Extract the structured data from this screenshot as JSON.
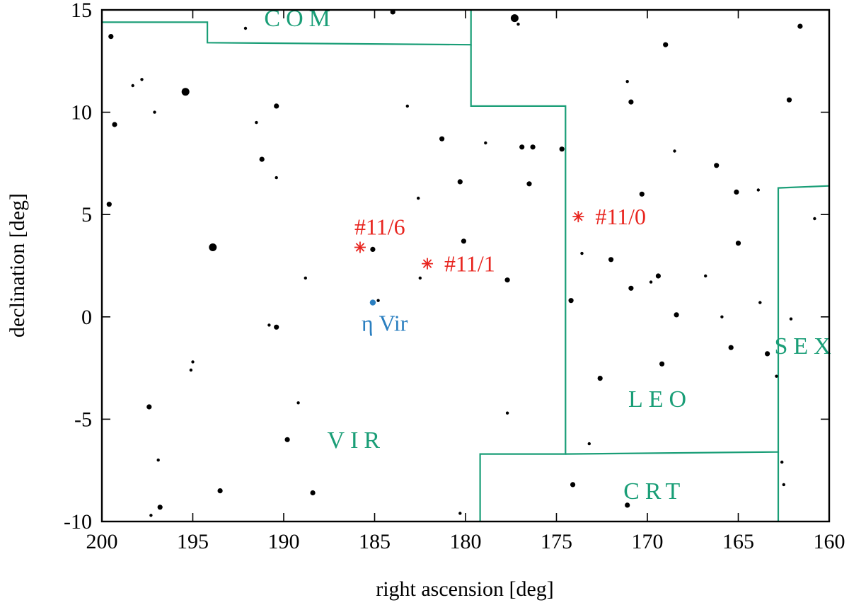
{
  "chart_data": {
    "type": "scatter",
    "title": "",
    "xlabel": "right ascension [deg]",
    "ylabel": "declination [deg]",
    "xlim": [
      200,
      160
    ],
    "ylim": [
      -10,
      15
    ],
    "xticks": [
      "200",
      "195",
      "190",
      "185",
      "180",
      "175",
      "170",
      "165",
      "160"
    ],
    "yticks": [
      "-10",
      "-5",
      "0",
      "5",
      "10",
      "15"
    ],
    "colors": {
      "frame": "#000000",
      "stars": "#000000",
      "boundaries": "#1a9e77",
      "targets": "#e8251f",
      "reference": "#2b7fc0"
    },
    "constellation_labels": [
      {
        "text": "COM",
        "ra": 189.1,
        "dec": 14.2
      },
      {
        "text": "VIR",
        "ra": 186.0,
        "dec": -6.4
      },
      {
        "text": "LEO",
        "ra": 169.3,
        "dec": -4.4
      },
      {
        "text": "CRT",
        "ra": 169.6,
        "dec": -8.9
      },
      {
        "text": "SEX",
        "ra": 161.3,
        "dec": -1.8
      }
    ],
    "boundaries": [
      [
        [
          200,
          14.4
        ],
        [
          194.2,
          14.4
        ],
        [
          194.2,
          13.4
        ],
        [
          179.7,
          13.3
        ],
        [
          179.7,
          15
        ]
      ],
      [
        [
          179.7,
          13.3
        ],
        [
          179.7,
          10.3
        ],
        [
          174.5,
          10.3
        ],
        [
          174.5,
          -6.7
        ],
        [
          179.2,
          -6.7
        ],
        [
          179.2,
          -10
        ]
      ],
      [
        [
          174.5,
          -6.7
        ],
        [
          162.8,
          -6.6
        ],
        [
          162.8,
          6.3
        ],
        [
          160,
          6.4
        ]
      ],
      [
        [
          162.8,
          -6.6
        ],
        [
          162.8,
          -10
        ]
      ]
    ],
    "targets": [
      {
        "label": "#11/0",
        "ra": 173.8,
        "dec": 4.9
      },
      {
        "label": "#11/1",
        "ra": 182.1,
        "dec": 2.6
      },
      {
        "label": "#11/6",
        "ra": 185.8,
        "dec": 3.4
      }
    ],
    "reference_star": {
      "label": "η Vir",
      "ra": 185.1,
      "dec": 0.7
    },
    "stars": [
      {
        "ra": 199.5,
        "dec": 13.7,
        "size": 2
      },
      {
        "ra": 199.3,
        "dec": 9.4,
        "size": 2
      },
      {
        "ra": 199.6,
        "dec": 5.5,
        "size": 2
      },
      {
        "ra": 198.3,
        "dec": 11.3,
        "size": 1
      },
      {
        "ra": 197.8,
        "dec": 11.6,
        "size": 1
      },
      {
        "ra": 197.1,
        "dec": 10.0,
        "size": 1
      },
      {
        "ra": 195.4,
        "dec": 11.0,
        "size": 3
      },
      {
        "ra": 193.9,
        "dec": 3.4,
        "size": 3
      },
      {
        "ra": 192.1,
        "dec": 14.1,
        "size": 1
      },
      {
        "ra": 191.5,
        "dec": 9.5,
        "size": 1
      },
      {
        "ra": 191.2,
        "dec": 7.7,
        "size": 2
      },
      {
        "ra": 190.4,
        "dec": 10.3,
        "size": 2
      },
      {
        "ra": 190.4,
        "dec": 6.8,
        "size": 1
      },
      {
        "ra": 188.8,
        "dec": 1.9,
        "size": 1
      },
      {
        "ra": 190.8,
        "dec": -0.4,
        "size": 1
      },
      {
        "ra": 190.4,
        "dec": -0.5,
        "size": 2
      },
      {
        "ra": 197.4,
        "dec": -4.4,
        "size": 2
      },
      {
        "ra": 195.0,
        "dec": -2.2,
        "size": 1
      },
      {
        "ra": 195.1,
        "dec": -2.6,
        "size": 1
      },
      {
        "ra": 196.9,
        "dec": -7.0,
        "size": 1
      },
      {
        "ra": 196.8,
        "dec": -9.3,
        "size": 2
      },
      {
        "ra": 197.3,
        "dec": -9.7,
        "size": 1
      },
      {
        "ra": 193.5,
        "dec": -8.5,
        "size": 2
      },
      {
        "ra": 189.8,
        "dec": -6.0,
        "size": 2
      },
      {
        "ra": 189.2,
        "dec": -4.2,
        "size": 1
      },
      {
        "ra": 188.4,
        "dec": -8.6,
        "size": 2
      },
      {
        "ra": 184.0,
        "dec": 14.9,
        "size": 2
      },
      {
        "ra": 183.2,
        "dec": 10.3,
        "size": 1
      },
      {
        "ra": 181.3,
        "dec": 8.7,
        "size": 2
      },
      {
        "ra": 182.6,
        "dec": 5.8,
        "size": 1
      },
      {
        "ra": 180.3,
        "dec": 6.6,
        "size": 2
      },
      {
        "ra": 180.1,
        "dec": 3.7,
        "size": 2
      },
      {
        "ra": 185.1,
        "dec": 3.3,
        "size": 2
      },
      {
        "ra": 182.5,
        "dec": 1.9,
        "size": 1
      },
      {
        "ra": 184.8,
        "dec": 0.8,
        "size": 1
      },
      {
        "ra": 180.3,
        "dec": -9.6,
        "size": 1
      },
      {
        "ra": 177.3,
        "dec": 14.6,
        "size": 3
      },
      {
        "ra": 177.1,
        "dec": 14.3,
        "size": 1
      },
      {
        "ra": 178.9,
        "dec": 8.5,
        "size": 1
      },
      {
        "ra": 176.9,
        "dec": 8.3,
        "size": 2
      },
      {
        "ra": 176.3,
        "dec": 8.3,
        "size": 2
      },
      {
        "ra": 176.5,
        "dec": 6.5,
        "size": 2
      },
      {
        "ra": 177.7,
        "dec": 1.8,
        "size": 2
      },
      {
        "ra": 177.7,
        "dec": -4.7,
        "size": 1
      },
      {
        "ra": 174.7,
        "dec": 8.2,
        "size": 2
      },
      {
        "ra": 174.2,
        "dec": 0.8,
        "size": 2
      },
      {
        "ra": 173.6,
        "dec": 3.1,
        "size": 1
      },
      {
        "ra": 173.2,
        "dec": -6.2,
        "size": 1
      },
      {
        "ra": 174.1,
        "dec": -8.2,
        "size": 2
      },
      {
        "ra": 171.1,
        "dec": 11.5,
        "size": 1
      },
      {
        "ra": 170.9,
        "dec": 10.5,
        "size": 2
      },
      {
        "ra": 172.0,
        "dec": 2.8,
        "size": 2
      },
      {
        "ra": 170.9,
        "dec": 1.4,
        "size": 2
      },
      {
        "ra": 172.6,
        "dec": -3.0,
        "size": 2
      },
      {
        "ra": 171.1,
        "dec": -9.2,
        "size": 2
      },
      {
        "ra": 170.3,
        "dec": 6.0,
        "size": 2
      },
      {
        "ra": 169.0,
        "dec": 13.3,
        "size": 2
      },
      {
        "ra": 168.5,
        "dec": 8.1,
        "size": 1
      },
      {
        "ra": 169.4,
        "dec": 2.0,
        "size": 2
      },
      {
        "ra": 169.8,
        "dec": 1.7,
        "size": 1
      },
      {
        "ra": 168.4,
        "dec": 0.1,
        "size": 2
      },
      {
        "ra": 169.2,
        "dec": -2.3,
        "size": 2
      },
      {
        "ra": 166.2,
        "dec": 7.4,
        "size": 2
      },
      {
        "ra": 166.8,
        "dec": 2.0,
        "size": 1
      },
      {
        "ra": 165.1,
        "dec": 6.1,
        "size": 2
      },
      {
        "ra": 165.0,
        "dec": 3.6,
        "size": 2
      },
      {
        "ra": 165.9,
        "dec": 0.0,
        "size": 1
      },
      {
        "ra": 165.4,
        "dec": -1.5,
        "size": 2
      },
      {
        "ra": 163.9,
        "dec": 6.2,
        "size": 1
      },
      {
        "ra": 163.8,
        "dec": 0.7,
        "size": 1
      },
      {
        "ra": 163.4,
        "dec": -1.8,
        "size": 2
      },
      {
        "ra": 162.2,
        "dec": 10.6,
        "size": 2
      },
      {
        "ra": 161.6,
        "dec": 14.2,
        "size": 2
      },
      {
        "ra": 162.1,
        "dec": -0.1,
        "size": 1
      },
      {
        "ra": 160.8,
        "dec": 4.8,
        "size": 1
      },
      {
        "ra": 162.9,
        "dec": -2.9,
        "size": 1
      },
      {
        "ra": 162.6,
        "dec": -7.1,
        "size": 1
      },
      {
        "ra": 162.5,
        "dec": -8.2,
        "size": 1
      }
    ]
  }
}
